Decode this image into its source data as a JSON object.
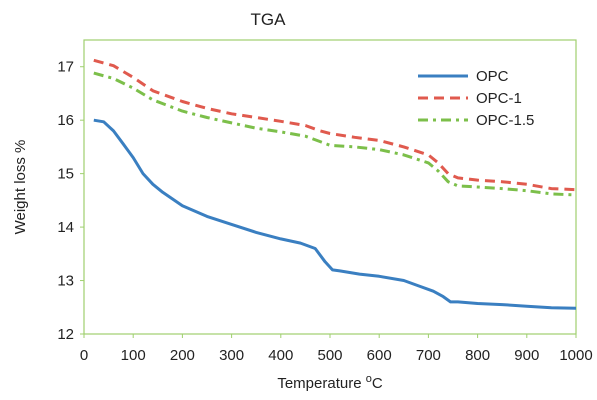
{
  "chart_data": {
    "type": "line",
    "title": "TGA",
    "xlabel_main": "Temperature ",
    "xlabel_sup": "o",
    "xlabel_unit": "C",
    "ylabel": "Weight loss %",
    "xlim": [
      0,
      1000
    ],
    "ylim": [
      12,
      17.5
    ],
    "xticks": [
      0,
      100,
      200,
      300,
      400,
      500,
      600,
      700,
      800,
      900,
      1000
    ],
    "yticks": [
      12,
      13,
      14,
      15,
      16,
      17
    ],
    "grid": false,
    "legend_position": "top-right",
    "series": [
      {
        "name": "OPC",
        "color": "#3a7fc1",
        "dash": "solid",
        "x": [
          20,
          40,
          60,
          80,
          100,
          120,
          140,
          160,
          200,
          250,
          300,
          350,
          400,
          440,
          470,
          490,
          505,
          520,
          560,
          600,
          650,
          680,
          710,
          730,
          745,
          760,
          800,
          850,
          900,
          950,
          1000
        ],
        "y": [
          16.0,
          15.97,
          15.8,
          15.55,
          15.3,
          15.0,
          14.8,
          14.65,
          14.4,
          14.2,
          14.05,
          13.9,
          13.78,
          13.7,
          13.6,
          13.35,
          13.2,
          13.18,
          13.12,
          13.08,
          13.0,
          12.9,
          12.8,
          12.7,
          12.6,
          12.6,
          12.57,
          12.55,
          12.52,
          12.49,
          12.48
        ]
      },
      {
        "name": "OPC-1",
        "color": "#e05a4e",
        "dash": "dashed",
        "x": [
          20,
          60,
          100,
          140,
          200,
          250,
          300,
          350,
          400,
          450,
          480,
          500,
          550,
          600,
          650,
          700,
          720,
          740,
          760,
          800,
          850,
          900,
          950,
          1000
        ],
        "y": [
          17.12,
          17.02,
          16.8,
          16.55,
          16.35,
          16.22,
          16.12,
          16.05,
          15.98,
          15.9,
          15.8,
          15.75,
          15.68,
          15.62,
          15.5,
          15.35,
          15.2,
          15.0,
          14.92,
          14.88,
          14.85,
          14.8,
          14.72,
          14.7
        ]
      },
      {
        "name": "OPC-1.5",
        "color": "#7cbf4a",
        "dash": "dashdot",
        "x": [
          20,
          60,
          100,
          140,
          200,
          250,
          300,
          350,
          400,
          450,
          480,
          500,
          550,
          600,
          650,
          700,
          720,
          740,
          760,
          800,
          850,
          900,
          950,
          1000
        ],
        "y": [
          16.88,
          16.78,
          16.6,
          16.38,
          16.17,
          16.05,
          15.95,
          15.85,
          15.78,
          15.7,
          15.6,
          15.53,
          15.5,
          15.45,
          15.35,
          15.2,
          15.05,
          14.85,
          14.77,
          14.75,
          14.72,
          14.68,
          14.62,
          14.6
        ]
      }
    ]
  }
}
